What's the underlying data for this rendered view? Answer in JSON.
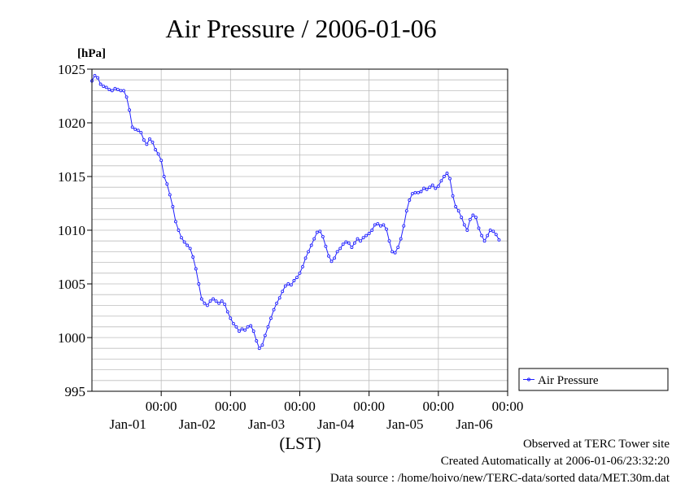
{
  "chart_data": {
    "type": "line",
    "title": "Air Pressure / 2006-01-06",
    "ylabel": "[hPa]",
    "xlabel": "(LST)",
    "ylim": [
      995,
      1025
    ],
    "y_ticks": [
      995,
      1000,
      1005,
      1010,
      1015,
      1020,
      1025
    ],
    "y_minor_step": 1,
    "xlim_hours": [
      0,
      144
    ],
    "x_ticks": [
      {
        "time": "00:00",
        "date": "Jan-01",
        "hour": 24
      },
      {
        "time": "00:00",
        "date": "Jan-02",
        "hour": 48
      },
      {
        "time": "00:00",
        "date": "Jan-03",
        "hour": 72
      },
      {
        "time": "00:00",
        "date": "Jan-04",
        "hour": 96
      },
      {
        "time": "00:00",
        "date": "Jan-05",
        "hour": 120
      },
      {
        "time": "00:00",
        "date": "Jan-06",
        "hour": 144
      }
    ],
    "grid": true,
    "legend_position": "right",
    "series": [
      {
        "name": "Air Pressure",
        "color": "#2020ff",
        "marker": "circle",
        "points": [
          [
            0,
            1023.9
          ],
          [
            1,
            1024.4
          ],
          [
            2,
            1024.2
          ],
          [
            3,
            1023.6
          ],
          [
            4,
            1023.4
          ],
          [
            5,
            1023.3
          ],
          [
            6,
            1023.1
          ],
          [
            7,
            1023.0
          ],
          [
            8,
            1023.2
          ],
          [
            9,
            1023.1
          ],
          [
            10,
            1023.0
          ],
          [
            11,
            1023.0
          ],
          [
            12,
            1022.4
          ],
          [
            13,
            1021.2
          ],
          [
            14,
            1019.6
          ],
          [
            15,
            1019.4
          ],
          [
            16,
            1019.3
          ],
          [
            17,
            1019.1
          ],
          [
            18,
            1018.4
          ],
          [
            19,
            1018.0
          ],
          [
            20,
            1018.5
          ],
          [
            21,
            1018.2
          ],
          [
            22,
            1017.5
          ],
          [
            23,
            1017.1
          ],
          [
            24,
            1016.5
          ],
          [
            25,
            1015.0
          ],
          [
            26,
            1014.3
          ],
          [
            27,
            1013.3
          ],
          [
            28,
            1012.2
          ],
          [
            29,
            1010.8
          ],
          [
            30,
            1010.0
          ],
          [
            31,
            1009.3
          ],
          [
            32,
            1008.9
          ],
          [
            33,
            1008.6
          ],
          [
            34,
            1008.3
          ],
          [
            35,
            1007.5
          ],
          [
            36,
            1006.4
          ],
          [
            37,
            1005.0
          ],
          [
            38,
            1003.6
          ],
          [
            39,
            1003.2
          ],
          [
            40,
            1003.0
          ],
          [
            41,
            1003.4
          ],
          [
            42,
            1003.6
          ],
          [
            43,
            1003.4
          ],
          [
            44,
            1003.2
          ],
          [
            45,
            1003.4
          ],
          [
            46,
            1003.1
          ],
          [
            47,
            1002.4
          ],
          [
            48,
            1001.8
          ],
          [
            49,
            1001.3
          ],
          [
            50,
            1001.0
          ],
          [
            51,
            1000.6
          ],
          [
            52,
            1000.8
          ],
          [
            53,
            1000.7
          ],
          [
            54,
            1001.0
          ],
          [
            55,
            1001.1
          ],
          [
            56,
            1000.6
          ],
          [
            57,
            999.7
          ],
          [
            58,
            999.0
          ],
          [
            59,
            999.3
          ],
          [
            60,
            1000.2
          ],
          [
            61,
            1001.0
          ],
          [
            62,
            1001.8
          ],
          [
            63,
            1002.6
          ],
          [
            64,
            1003.2
          ],
          [
            65,
            1003.7
          ],
          [
            66,
            1004.3
          ],
          [
            67,
            1004.8
          ],
          [
            68,
            1005.0
          ],
          [
            69,
            1004.9
          ],
          [
            70,
            1005.3
          ],
          [
            71,
            1005.6
          ],
          [
            72,
            1006.0
          ],
          [
            73,
            1006.6
          ],
          [
            74,
            1007.4
          ],
          [
            75,
            1008.0
          ],
          [
            76,
            1008.6
          ],
          [
            77,
            1009.2
          ],
          [
            78,
            1009.8
          ],
          [
            79,
            1009.9
          ],
          [
            80,
            1009.4
          ],
          [
            81,
            1008.5
          ],
          [
            82,
            1007.6
          ],
          [
            83,
            1007.1
          ],
          [
            84,
            1007.4
          ],
          [
            85,
            1008.0
          ],
          [
            86,
            1008.3
          ],
          [
            87,
            1008.7
          ],
          [
            88,
            1008.9
          ],
          [
            89,
            1008.8
          ],
          [
            90,
            1008.4
          ],
          [
            91,
            1008.8
          ],
          [
            92,
            1009.2
          ],
          [
            93,
            1009.0
          ],
          [
            94,
            1009.3
          ],
          [
            95,
            1009.5
          ],
          [
            96,
            1009.7
          ],
          [
            97,
            1010.0
          ],
          [
            98,
            1010.5
          ],
          [
            99,
            1010.6
          ],
          [
            100,
            1010.4
          ],
          [
            101,
            1010.5
          ],
          [
            102,
            1010.1
          ],
          [
            103,
            1009.0
          ],
          [
            104,
            1008.0
          ],
          [
            105,
            1007.9
          ],
          [
            106,
            1008.4
          ],
          [
            107,
            1009.2
          ],
          [
            108,
            1010.4
          ],
          [
            109,
            1011.8
          ],
          [
            110,
            1012.8
          ],
          [
            111,
            1013.4
          ],
          [
            112,
            1013.5
          ],
          [
            113,
            1013.5
          ],
          [
            114,
            1013.6
          ],
          [
            115,
            1013.9
          ],
          [
            116,
            1013.8
          ],
          [
            117,
            1014.0
          ],
          [
            118,
            1014.2
          ],
          [
            119,
            1013.9
          ],
          [
            120,
            1014.1
          ],
          [
            121,
            1014.6
          ],
          [
            122,
            1015.0
          ],
          [
            123,
            1015.3
          ],
          [
            124,
            1014.8
          ],
          [
            125,
            1013.2
          ],
          [
            126,
            1012.2
          ],
          [
            127,
            1011.8
          ],
          [
            128,
            1011.2
          ],
          [
            129,
            1010.5
          ],
          [
            130,
            1010.0
          ],
          [
            131,
            1011.0
          ],
          [
            132,
            1011.4
          ],
          [
            133,
            1011.2
          ],
          [
            134,
            1010.2
          ],
          [
            135,
            1009.5
          ],
          [
            136,
            1009.0
          ],
          [
            137,
            1009.5
          ],
          [
            138,
            1010.0
          ],
          [
            139,
            1009.9
          ],
          [
            140,
            1009.6
          ],
          [
            141,
            1009.1
          ]
        ]
      }
    ]
  },
  "footer": {
    "observed": "Observed at TERC Tower site",
    "created": "Created Automatically at 2006-01-06/23:32:20",
    "source": "Data source : /home/hoivo/new/TERC-data/sorted  data/MET.30m.dat"
  }
}
